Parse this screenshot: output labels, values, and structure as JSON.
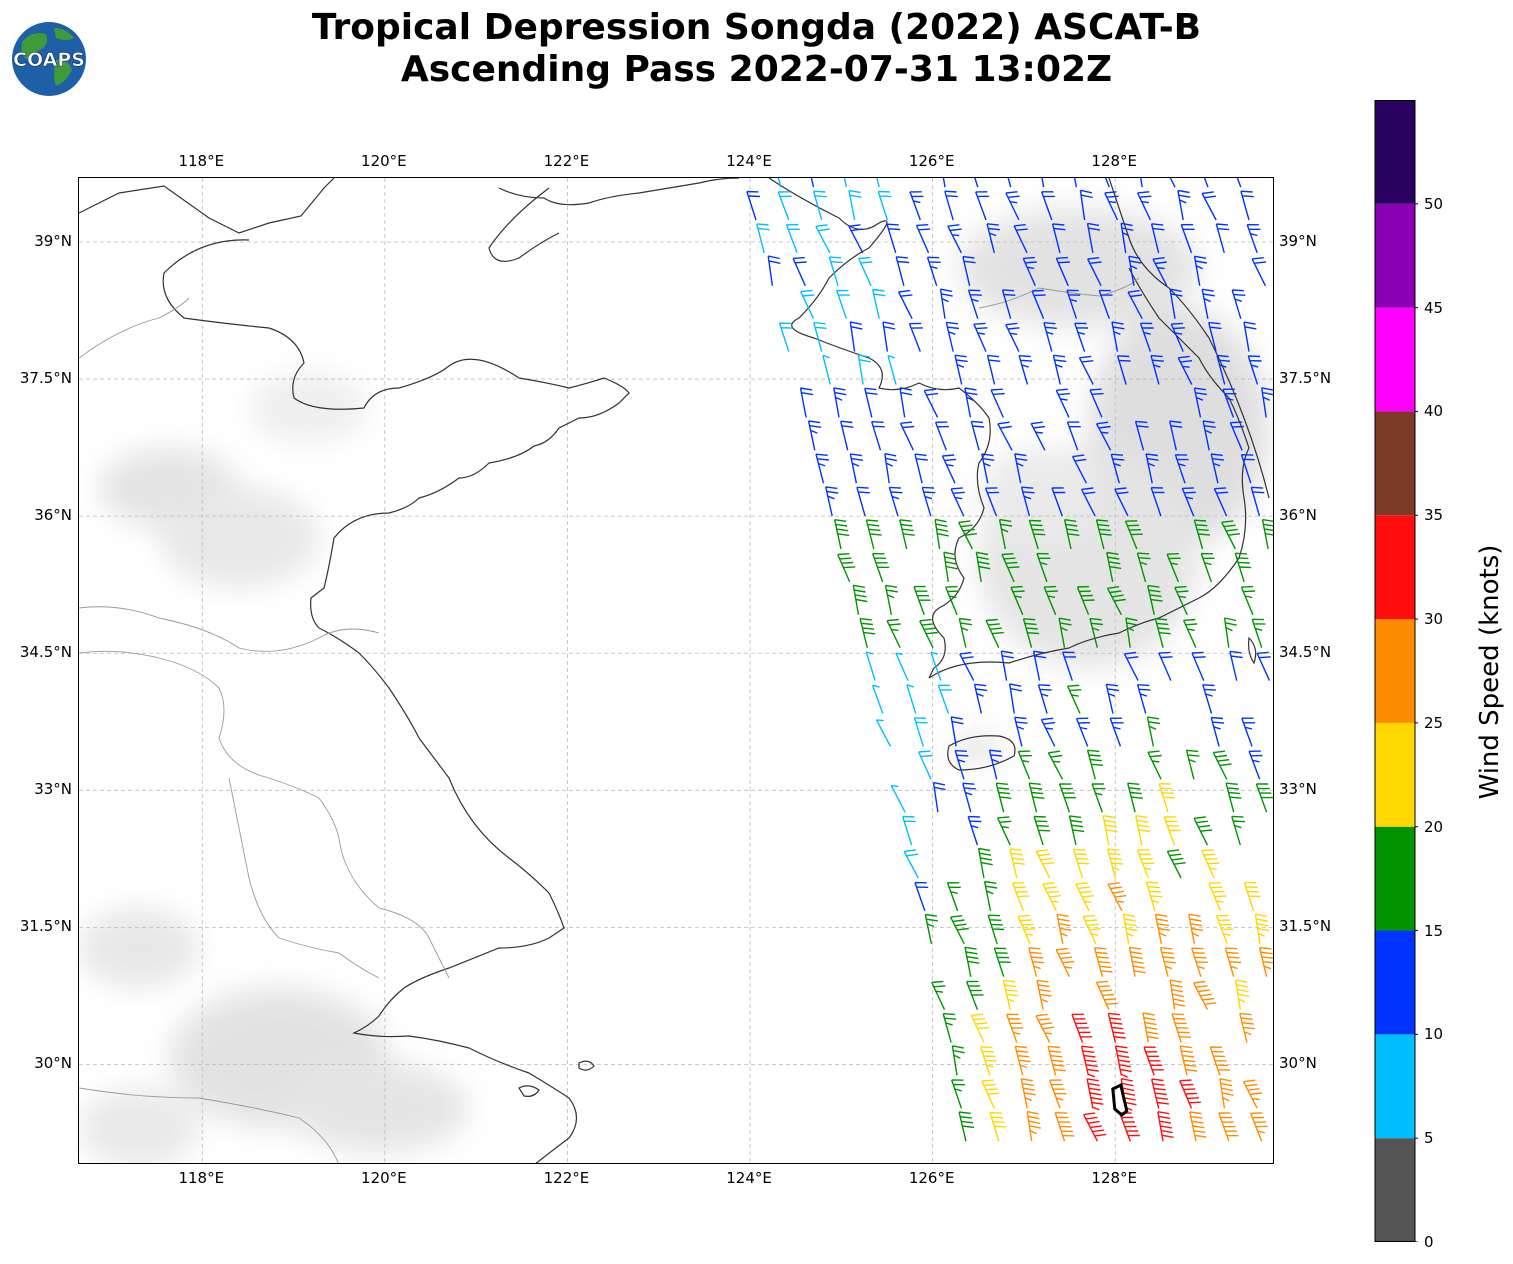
{
  "title_line1": "Tropical Depression Songda (2022) ASCAT-B",
  "title_line2": "Ascending Pass 2022-07-31 13:02Z",
  "logo_text": "COAPS",
  "map": {
    "lon_ticks": [
      "118°E",
      "120°E",
      "122°E",
      "124°E",
      "126°E",
      "128°E"
    ],
    "lon_values": [
      118,
      120,
      122,
      124,
      126,
      128
    ],
    "lat_ticks": [
      "39°N",
      "37.5°N",
      "36°N",
      "34.5°N",
      "33°N",
      "31.5°N",
      "30°N"
    ],
    "lat_values": [
      39,
      37.5,
      36,
      34.5,
      33,
      31.5,
      30
    ],
    "lon_range": [
      116.65,
      129.75
    ],
    "lat_range": [
      28.9,
      39.7
    ],
    "swath_west_edge": [
      [
        123.85,
        39.7
      ],
      [
        124.35,
        37.7
      ],
      [
        124.8,
        36.0
      ],
      [
        125.2,
        34.5
      ],
      [
        125.55,
        33.0
      ],
      [
        125.85,
        31.5
      ],
      [
        126.15,
        30.0
      ],
      [
        126.3,
        28.9
      ]
    ],
    "storm_center": {
      "lon": 128.05,
      "lat": 29.6
    },
    "colors": {
      "coast": "#333333",
      "border": "#999999",
      "grid": "#bbbbbb",
      "storm": "#000000"
    }
  },
  "colorbar": {
    "label": "Wind Speed (knots)",
    "ticks": [
      "0",
      "5",
      "10",
      "15",
      "20",
      "25",
      "30",
      "35",
      "40",
      "45",
      "50"
    ],
    "bins": [
      {
        "min": 0,
        "max": 5,
        "color": "#555555"
      },
      {
        "min": 5,
        "max": 10,
        "color": "#00bfff"
      },
      {
        "min": 10,
        "max": 15,
        "color": "#0033ff"
      },
      {
        "min": 15,
        "max": 20,
        "color": "#009400"
      },
      {
        "min": 20,
        "max": 25,
        "color": "#ffd700"
      },
      {
        "min": 25,
        "max": 30,
        "color": "#ff8c00"
      },
      {
        "min": 30,
        "max": 35,
        "color": "#ff0d0d"
      },
      {
        "min": 35,
        "max": 40,
        "color": "#7d3a26"
      },
      {
        "min": 40,
        "max": 45,
        "color": "#ff00ff"
      },
      {
        "min": 45,
        "max": 50,
        "color": "#8b00b4"
      },
      {
        "min": 50,
        "max": 55,
        "color": "#2a0060"
      }
    ]
  }
}
